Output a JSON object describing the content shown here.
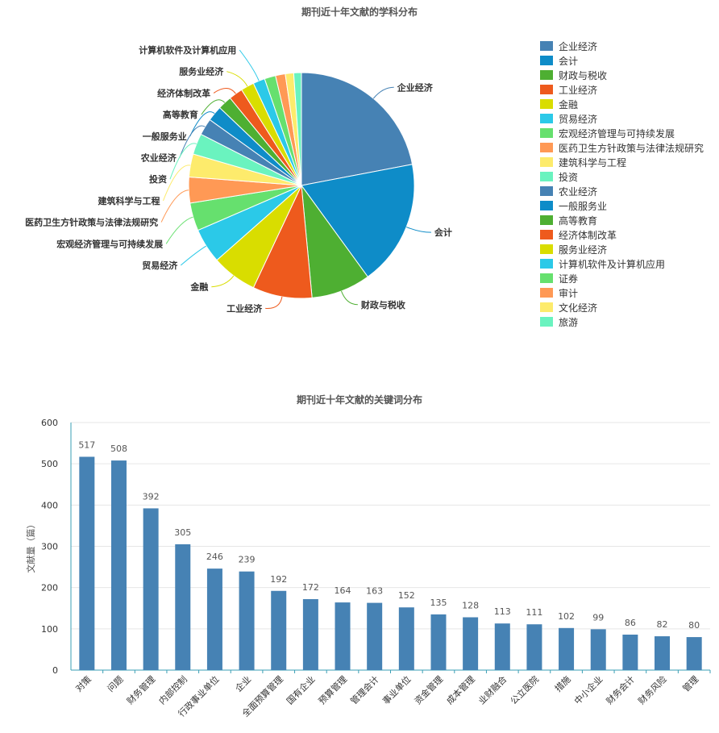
{
  "chart_data": [
    {
      "type": "pie",
      "title": "期刊近十年文献的学科分布",
      "categories": [
        "企业经济",
        "会计",
        "财政与税收",
        "工业经济",
        "金融",
        "贸易经济",
        "宏观经济管理与可持续发展",
        "医药卫生方针政策与法律法规研究",
        "建筑科学与工程",
        "投资",
        "农业经济",
        "一般服务业",
        "高等教育",
        "经济体制改革",
        "服务业经济",
        "计算机软件及计算机应用",
        "证券",
        "审计",
        "文化经济",
        "旅游"
      ],
      "values": [
        22.0,
        18.0,
        8.5,
        8.5,
        6.5,
        5.0,
        4.0,
        3.7,
        3.3,
        3.0,
        2.4,
        2.2,
        2.0,
        2.0,
        1.9,
        1.7,
        1.6,
        1.4,
        1.2,
        1.1
      ],
      "colors": [
        "#4682B4",
        "#0E8CC8",
        "#4EAF32",
        "#EE5A1D",
        "#D9DD00",
        "#2BC9E8",
        "#66E06E",
        "#FF9955",
        "#FDEB6C",
        "#6AF3BF",
        "#4682B4",
        "#0E8CC8",
        "#4EAF32",
        "#EE5A1D",
        "#D9DD00",
        "#2BC9E8",
        "#66E06E",
        "#FF9955",
        "#FDEB6C",
        "#6AF3BF"
      ],
      "labeled_slices": [
        "企业经济",
        "会计",
        "财政与税收",
        "工业经济",
        "金融",
        "贸易经济",
        "宏观经济管理与可持续发展",
        "医药卫生方针政策与法律法规研究",
        "建筑科学与工程",
        "投资",
        "农业经济",
        "一般服务业",
        "高等教育",
        "经济体制改革",
        "服务业经济",
        "计算机软件及计算机应用"
      ],
      "legend_position": "right"
    },
    {
      "type": "bar",
      "title": "期刊近十年文献的关键词分布",
      "categories": [
        "对策",
        "问题",
        "财务管理",
        "内部控制",
        "行政事业单位",
        "企业",
        "全面预算管理",
        "国有企业",
        "预算管理",
        "管理会计",
        "事业单位",
        "资金管理",
        "成本管理",
        "业财融合",
        "公立医院",
        "措施",
        "中小企业",
        "财务会计",
        "财务风险",
        "管理"
      ],
      "values": [
        517,
        508,
        392,
        305,
        246,
        239,
        192,
        172,
        164,
        163,
        152,
        135,
        128,
        113,
        111,
        102,
        99,
        86,
        82,
        80
      ],
      "ylabel": "文献量（篇）",
      "ylim": [
        0,
        600
      ],
      "yticks": [
        0,
        100,
        200,
        300,
        400,
        500,
        600
      ],
      "color": "#4682B4",
      "grid": true
    }
  ]
}
